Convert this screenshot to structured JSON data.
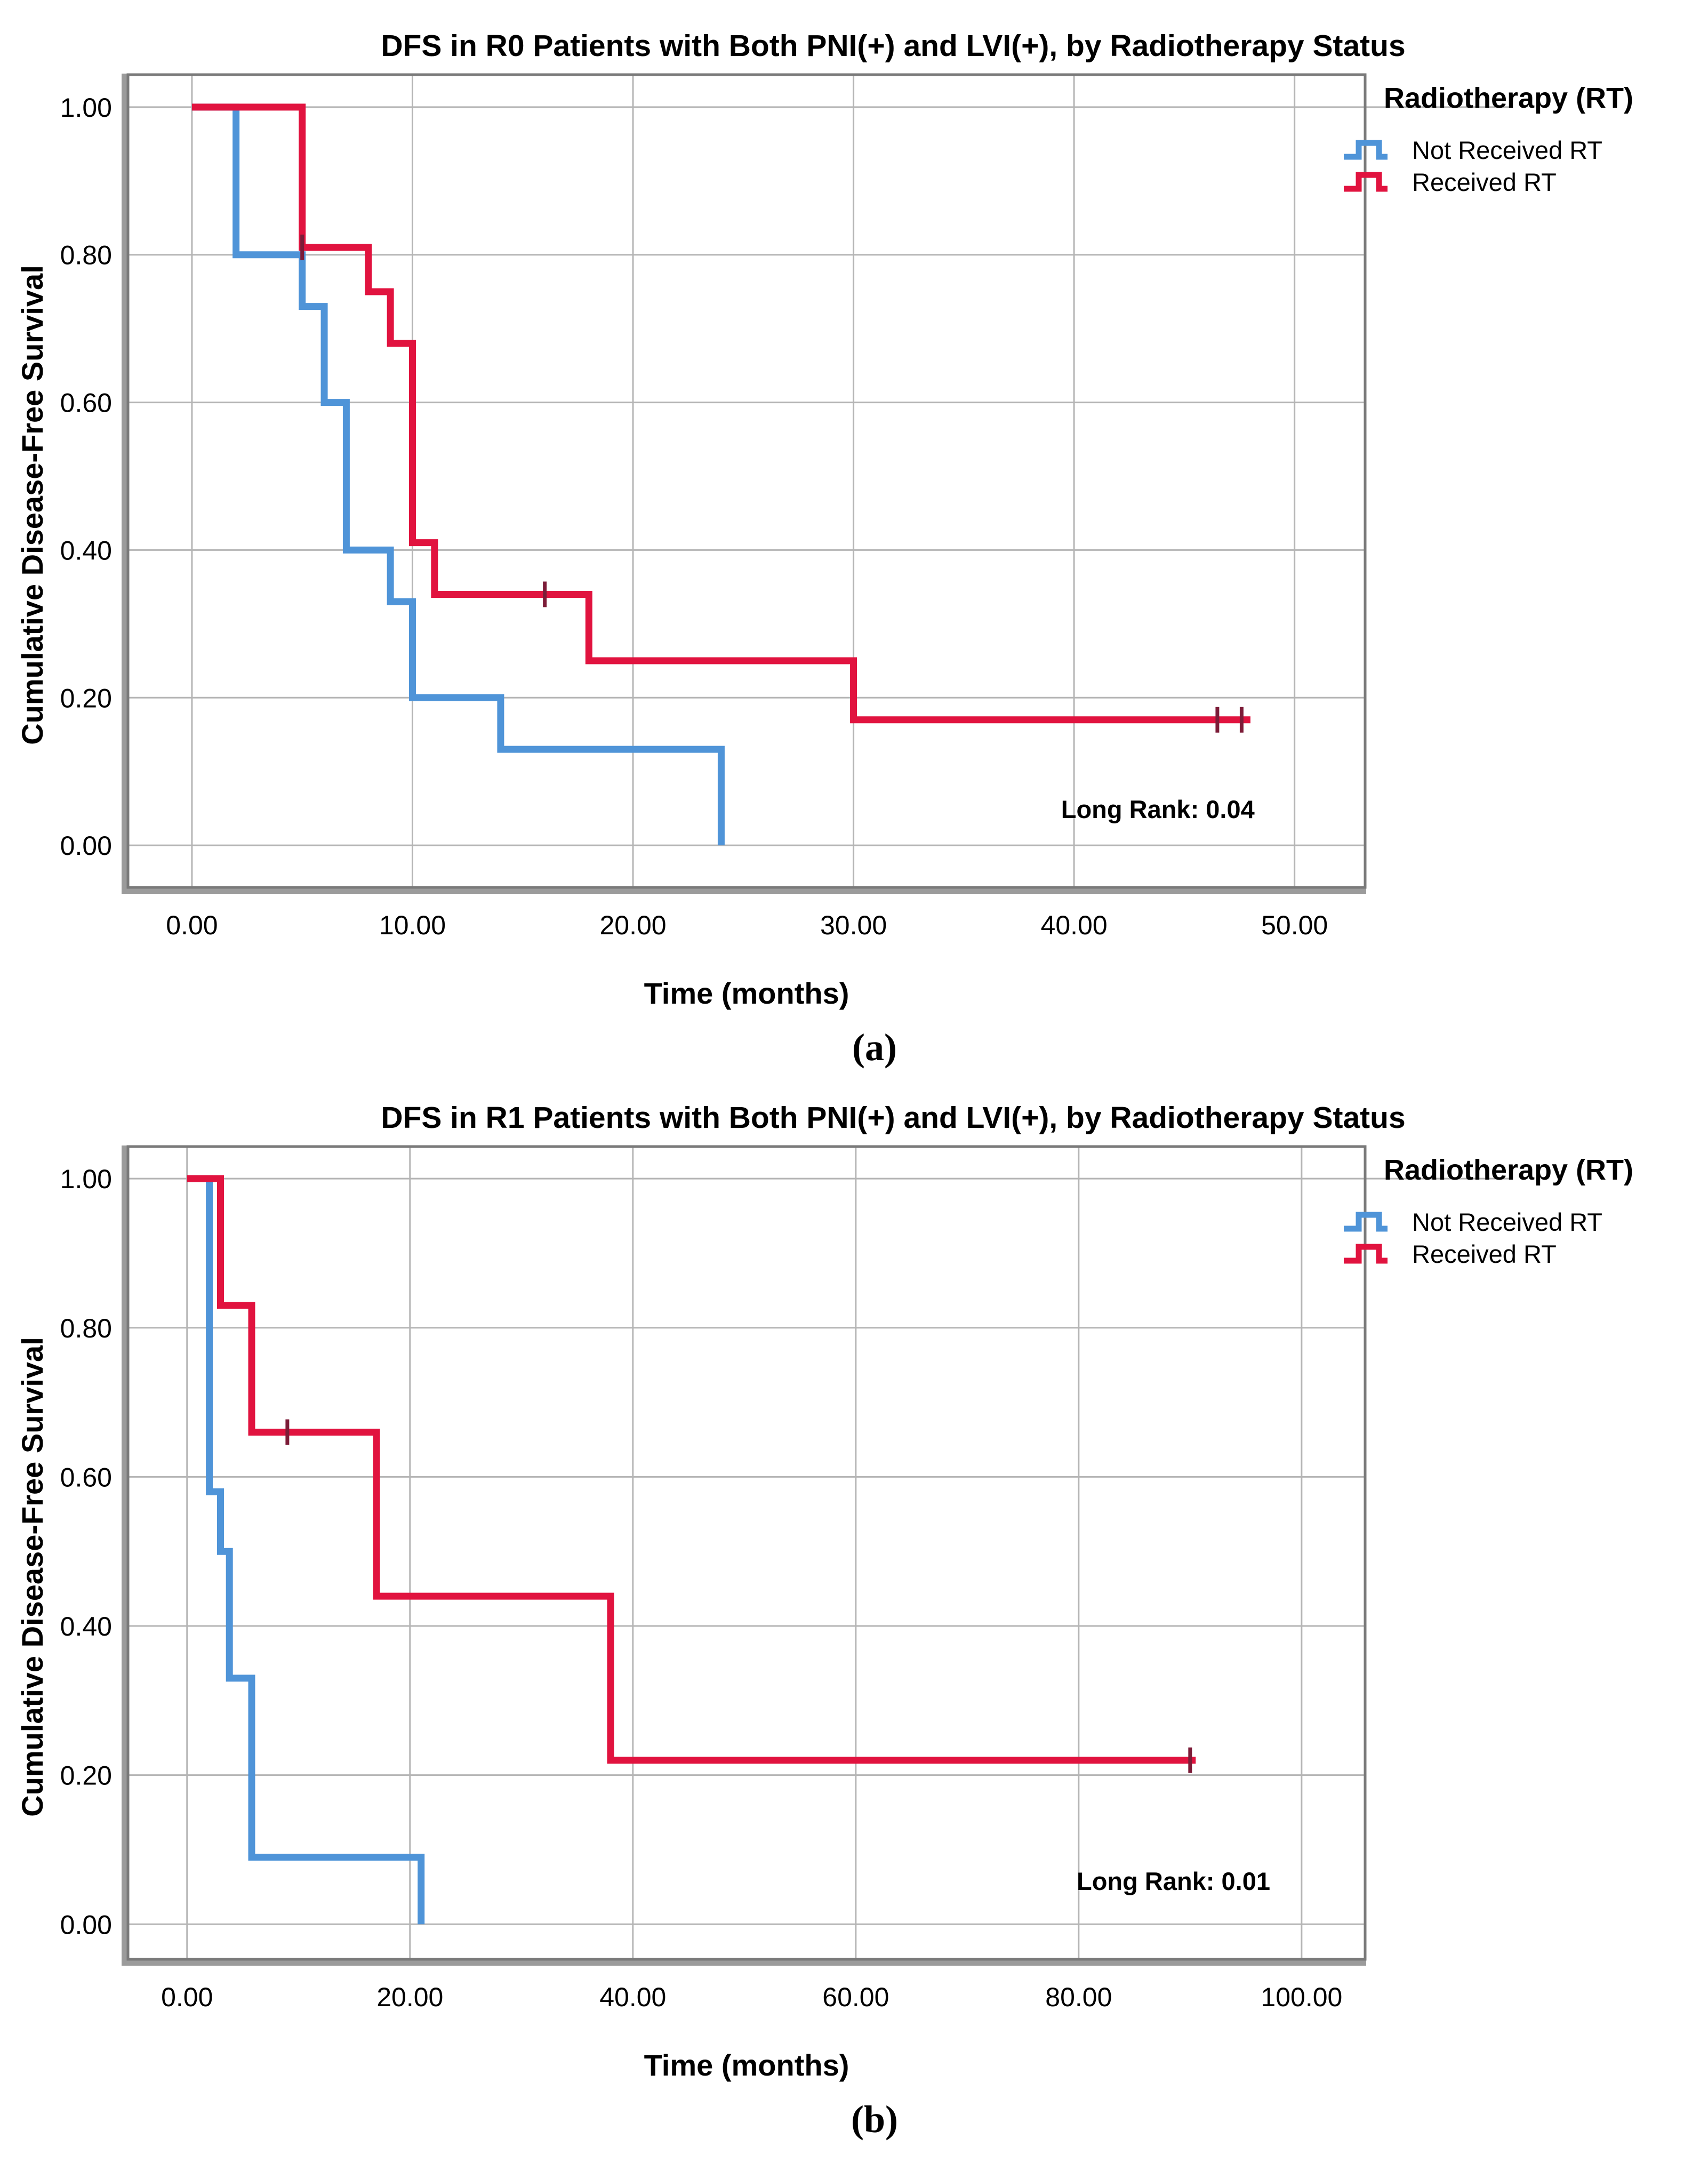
{
  "colors": {
    "blue": "#4f94d8",
    "red": "#e1133f",
    "grid": "#b5b5b5",
    "frame": "#7a7a7a",
    "frame_bevel": "#9b9b9b",
    "censor": "#7c1c38",
    "text": "#000000"
  },
  "chart_data": [
    {
      "type": "line",
      "subtype": "kaplan-meier-step",
      "caption": "(a)",
      "title": "DFS in R0 Patients with Both PNI(+) and LVI(+), by Radiotherapy Status",
      "xlabel": "Time (months)",
      "ylabel": "Cumulative Disease-Free Survival",
      "annotation": {
        "text": "Long Rank: 0.04",
        "x": 43.8,
        "y": 0.037
      },
      "legend": {
        "title": "Radiotherapy (RT)",
        "position": "right-top",
        "items": [
          {
            "label": "Not Received RT",
            "color_key": "blue"
          },
          {
            "label": "Received RT",
            "color_key": "red"
          }
        ]
      },
      "grid": true,
      "x_axis": {
        "ticks": [
          0,
          10,
          20,
          30,
          40,
          50
        ],
        "tick_labels": [
          "0.00",
          "10.00",
          "20.00",
          "30.00",
          "40.00",
          "50.00"
        ],
        "view_min": -2.9,
        "view_max": 53.2
      },
      "y_axis": {
        "ticks": [
          0,
          0.2,
          0.4,
          0.6,
          0.8,
          1.0
        ],
        "tick_labels": [
          "0.00",
          "0.20",
          "0.40",
          "0.60",
          "0.80",
          "1.00"
        ],
        "view_min": -0.057,
        "view_max": 1.044
      },
      "series": [
        {
          "name": "Not Received RT",
          "color_key": "blue",
          "steps": [
            [
              0,
              1.0
            ],
            [
              2,
              0.8
            ],
            [
              5,
              0.73
            ],
            [
              6,
              0.6
            ],
            [
              7,
              0.4
            ],
            [
              9,
              0.33
            ],
            [
              10,
              0.2
            ],
            [
              14,
              0.13
            ],
            [
              24,
              0.0
            ]
          ],
          "end": 24,
          "censors": []
        },
        {
          "name": "Received RT",
          "color_key": "red",
          "steps": [
            [
              0,
              1.0
            ],
            [
              5,
              0.81
            ],
            [
              8,
              0.75
            ],
            [
              9,
              0.68
            ],
            [
              10,
              0.41
            ],
            [
              11,
              0.34
            ],
            [
              18,
              0.25
            ],
            [
              30,
              0.17
            ]
          ],
          "end": 48,
          "censors": [
            [
              5,
              0.81
            ],
            [
              16,
              0.34
            ],
            [
              46.5,
              0.17
            ],
            [
              47.6,
              0.17
            ]
          ]
        }
      ]
    },
    {
      "type": "line",
      "subtype": "kaplan-meier-step",
      "caption": "(b)",
      "title": "DFS in R1 Patients with Both PNI(+) and LVI(+), by Radiotherapy Status",
      "xlabel": "Time (months)",
      "ylabel": "Cumulative Disease-Free Survival",
      "annotation": {
        "text": "Long Rank: 0.01",
        "x": 88.5,
        "y": 0.046
      },
      "legend": {
        "title": "Radiotherapy (RT)",
        "position": "right-top",
        "items": [
          {
            "label": "Not Received RT",
            "color_key": "blue"
          },
          {
            "label": "Received RT",
            "color_key": "red"
          }
        ]
      },
      "grid": true,
      "x_axis": {
        "ticks": [
          0,
          20,
          40,
          60,
          80,
          100
        ],
        "tick_labels": [
          "0.00",
          "20.00",
          "40.00",
          "60.00",
          "80.00",
          "100.00"
        ],
        "view_min": -5.3,
        "view_max": 105.7
      },
      "y_axis": {
        "ticks": [
          0,
          0.2,
          0.4,
          0.6,
          0.8,
          1.0
        ],
        "tick_labels": [
          "0.00",
          "0.20",
          "0.40",
          "0.60",
          "0.80",
          "1.00"
        ],
        "view_min": -0.047,
        "view_max": 1.043
      },
      "series": [
        {
          "name": "Not Received RT",
          "color_key": "blue",
          "steps": [
            [
              0,
              1.0
            ],
            [
              2,
              0.58
            ],
            [
              3,
              0.5
            ],
            [
              3.8,
              0.33
            ],
            [
              5.8,
              0.09
            ],
            [
              21,
              0.0
            ]
          ],
          "end": 21,
          "censors": []
        },
        {
          "name": "Received RT",
          "color_key": "red",
          "steps": [
            [
              0,
              1.0
            ],
            [
              3,
              0.83
            ],
            [
              5.8,
              0.66
            ],
            [
              17,
              0.44
            ],
            [
              38,
              0.22
            ]
          ],
          "end": 90.5,
          "censors": [
            [
              9,
              0.66
            ],
            [
              90,
              0.22
            ]
          ]
        }
      ]
    }
  ]
}
